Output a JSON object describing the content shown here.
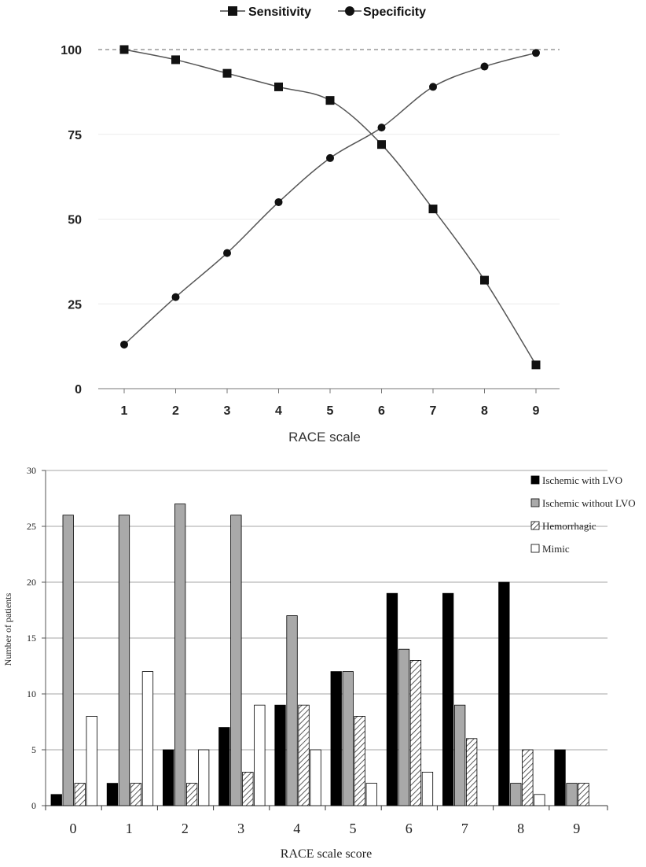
{
  "chart_data": [
    {
      "type": "line",
      "xlabel": "RACE scale",
      "ylabel": "",
      "x": [
        1,
        2,
        3,
        4,
        5,
        6,
        7,
        8,
        9
      ],
      "ylim": [
        0,
        100
      ],
      "yticks": [
        0,
        25,
        50,
        75,
        100
      ],
      "legend_position": "top",
      "reference_line": 100,
      "series": [
        {
          "name": "Sensitivity",
          "marker": "square",
          "values": [
            100,
            97,
            93,
            89,
            85,
            72,
            53,
            32,
            7
          ]
        },
        {
          "name": "Specificity",
          "marker": "circle",
          "values": [
            13,
            27,
            40,
            55,
            68,
            77,
            89,
            95,
            99
          ]
        }
      ]
    },
    {
      "type": "bar",
      "xlabel": "RACE scale score",
      "ylabel": "Number of patients",
      "categories": [
        "0",
        "1",
        "2",
        "3",
        "4",
        "5",
        "6",
        "7",
        "8",
        "9"
      ],
      "ylim": [
        0,
        30
      ],
      "yticks": [
        0,
        5,
        10,
        15,
        20,
        25,
        30
      ],
      "grid": true,
      "legend_position": "top-right",
      "series": [
        {
          "name": "Ischemic with LVO",
          "fill": "#000000",
          "values": [
            1,
            2,
            5,
            7,
            9,
            12,
            19,
            19,
            20,
            5
          ]
        },
        {
          "name": "Ischemic without LVO",
          "fill": "#a9a9a9",
          "values": [
            26,
            26,
            27,
            26,
            17,
            12,
            14,
            9,
            2,
            2
          ]
        },
        {
          "name": "Hemorrhagic",
          "fill": "hatch",
          "values": [
            2,
            2,
            2,
            3,
            9,
            8,
            13,
            6,
            5,
            2
          ]
        },
        {
          "name": "Mimic",
          "fill": "#ffffff",
          "values": [
            8,
            12,
            5,
            9,
            5,
            2,
            3,
            0,
            1,
            0
          ]
        }
      ]
    }
  ]
}
